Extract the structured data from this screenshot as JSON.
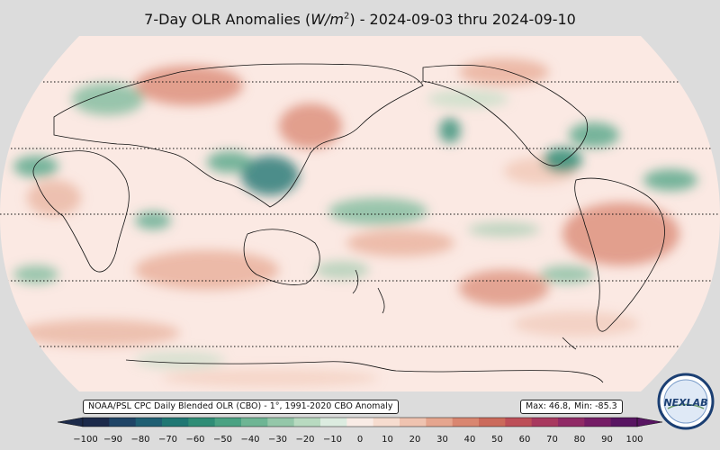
{
  "title": "7-Day OLR Anomalies (W/m²) - 2024-09-03 thru 2024-09-10",
  "title_prefix": "7-Day OLR Anomalies (",
  "title_units": "W/m",
  "title_sup": "2",
  "title_suffix": ") - 2024-09-03 thru 2024-09-10",
  "source_label": "NOAA/PSL CPC Daily Blended OLR (CBO) - 1°, 1991-2020 CBO Anomaly",
  "stats": {
    "max": "Max: 46.8,",
    "min": "Min: -85.3"
  },
  "colorbar": {
    "ticks": [
      "−100",
      "−90",
      "−80",
      "−70",
      "−60",
      "−50",
      "−40",
      "−30",
      "−20",
      "−10",
      "0",
      "10",
      "20",
      "30",
      "40",
      "50",
      "60",
      "70",
      "80",
      "90",
      "100"
    ],
    "colors": [
      "#1c2a4a",
      "#1f4466",
      "#1f5f73",
      "#1f7773",
      "#2f8d76",
      "#4aa283",
      "#6eb594",
      "#94c7a9",
      "#b8dac0",
      "#dcece0",
      "#f9ece6",
      "#f6dccf",
      "#efc3b0",
      "#e5a58e",
      "#d98670",
      "#cb6a5b",
      "#bd4f58",
      "#a8395f",
      "#902a66",
      "#751d66",
      "#581562"
    ]
  },
  "logo": {
    "text": "NEXLAB",
    "colors": {
      "ring": "#1b3f73",
      "fill": "#dfe9f6"
    }
  },
  "map": {
    "projection": "Robinson",
    "central_longitude": 180,
    "gridlines": "dotted",
    "background": "#fbe9e3"
  }
}
